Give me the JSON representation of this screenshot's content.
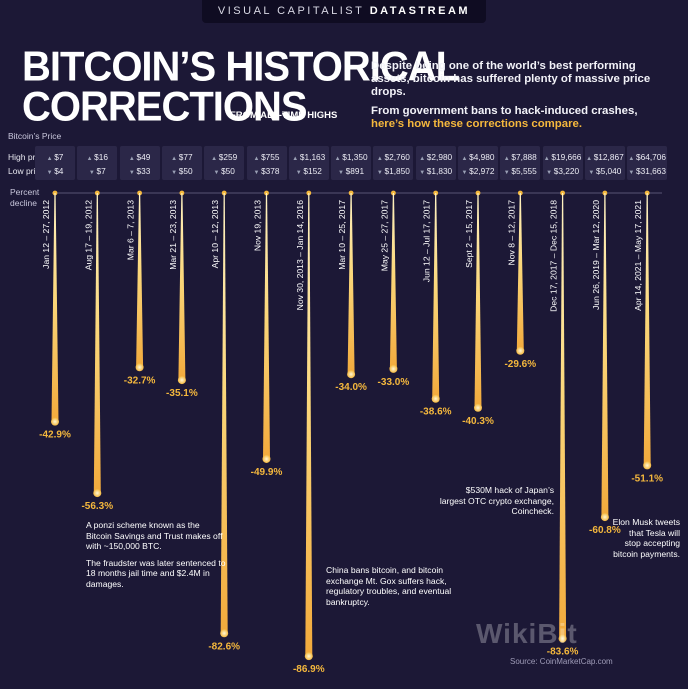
{
  "header": {
    "brand_light": "VISUAL CAPITALIST",
    "brand_bold": "DATASTREAM",
    "title_line1": "BITCOIN’S HISTORICAL",
    "title_line2": "CORRECTIONS",
    "subtitle": "FROM ALL-TIME HIGHS"
  },
  "intro": {
    "line1": "Despite being one of the world’s best performing assets, bitcoin has suffered plenty of massive price drops.",
    "line2_white": "From government bans to hack-induced crashes,",
    "line2_accent": "here’s how these corrections compare."
  },
  "labels": {
    "bitcoin_price": "Bitcoin’s Price",
    "high_price": "High price",
    "low_price": "Low price",
    "percent": "Percent",
    "decline": "decline"
  },
  "notes": {
    "ponzi_1": "A ponzi scheme known as the Bitcoin Savings and Trust makes off with ~150,000 BTC.",
    "ponzi_2": "The fraudster was later sentenced to 18 months jail time and $2.4M in damages.",
    "china": "China bans bitcoin, and bitcoin exchange Mt. Gox suffers hack, regulatory troubles, and eventual bankruptcy.",
    "coincheck": "$530M hack of Japan’s largest OTC crypto exchange, Coincheck.",
    "musk": "Elon Musk tweets that Tesla will stop accepting bitcoin payments."
  },
  "footer": {
    "source": "Source: CoinMarketCap.com",
    "watermark": "WikiBit"
  },
  "colors": {
    "background": "#1c1836",
    "accent": "#f5b83d",
    "bar_top": "#fff3c4",
    "bar_bottom": "#f2a93b",
    "price_box": "#2b2748"
  },
  "chart_data": {
    "type": "bar",
    "orientation": "downward",
    "ylim": [
      0,
      -90
    ],
    "categories": [
      "Jan 12 – 27, 2012",
      "Aug 17 – 19, 2012",
      "Mar 6 – 7, 2013",
      "Mar 21 – 23, 2013",
      "Apr 10 – 12, 2013",
      "Nov 19, 2013",
      "Nov 30, 2013 – Jan 14, 2016",
      "Mar 10 – 25, 2017",
      "May 25 – 27, 2017",
      "Jun 12 – Jul 17, 2017",
      "Sept 2 – 15, 2017",
      "Nov 8 – 12, 2017",
      "Dec 17, 2017 – Dec 15, 2018",
      "Jun 26, 2019 – Mar 12, 2020",
      "Apr 14, 2021 – May 17, 2021"
    ],
    "values": [
      -42.9,
      -56.3,
      -32.7,
      -35.1,
      -82.6,
      -49.9,
      -86.9,
      -34.0,
      -33.0,
      -38.6,
      -40.3,
      -29.6,
      -83.6,
      -60.8,
      -51.1
    ],
    "value_labels": [
      "-42.9%",
      "-56.3%",
      "-32.7%",
      "-35.1%",
      "-82.6%",
      "-49.9%",
      "-86.9%",
      "-34.0%",
      "-33.0%",
      "-38.6%",
      "-40.3%",
      "-29.6%",
      "-83.6%",
      "-60.8%",
      "-51.1%"
    ],
    "high_prices": [
      "$7",
      "$16",
      "$49",
      "$77",
      "$259",
      "$755",
      "$1,163",
      "$1,350",
      "$2,760",
      "$2,980",
      "$4,980",
      "$7,888",
      "$19,666",
      "$12,867",
      "$64,706"
    ],
    "low_prices": [
      "$4",
      "$7",
      "$33",
      "$50",
      "$50",
      "$378",
      "$152",
      "$891",
      "$1,850",
      "$1,830",
      "$2,972",
      "$5,555",
      "$3,220",
      "$5,040",
      "$31,663"
    ]
  }
}
